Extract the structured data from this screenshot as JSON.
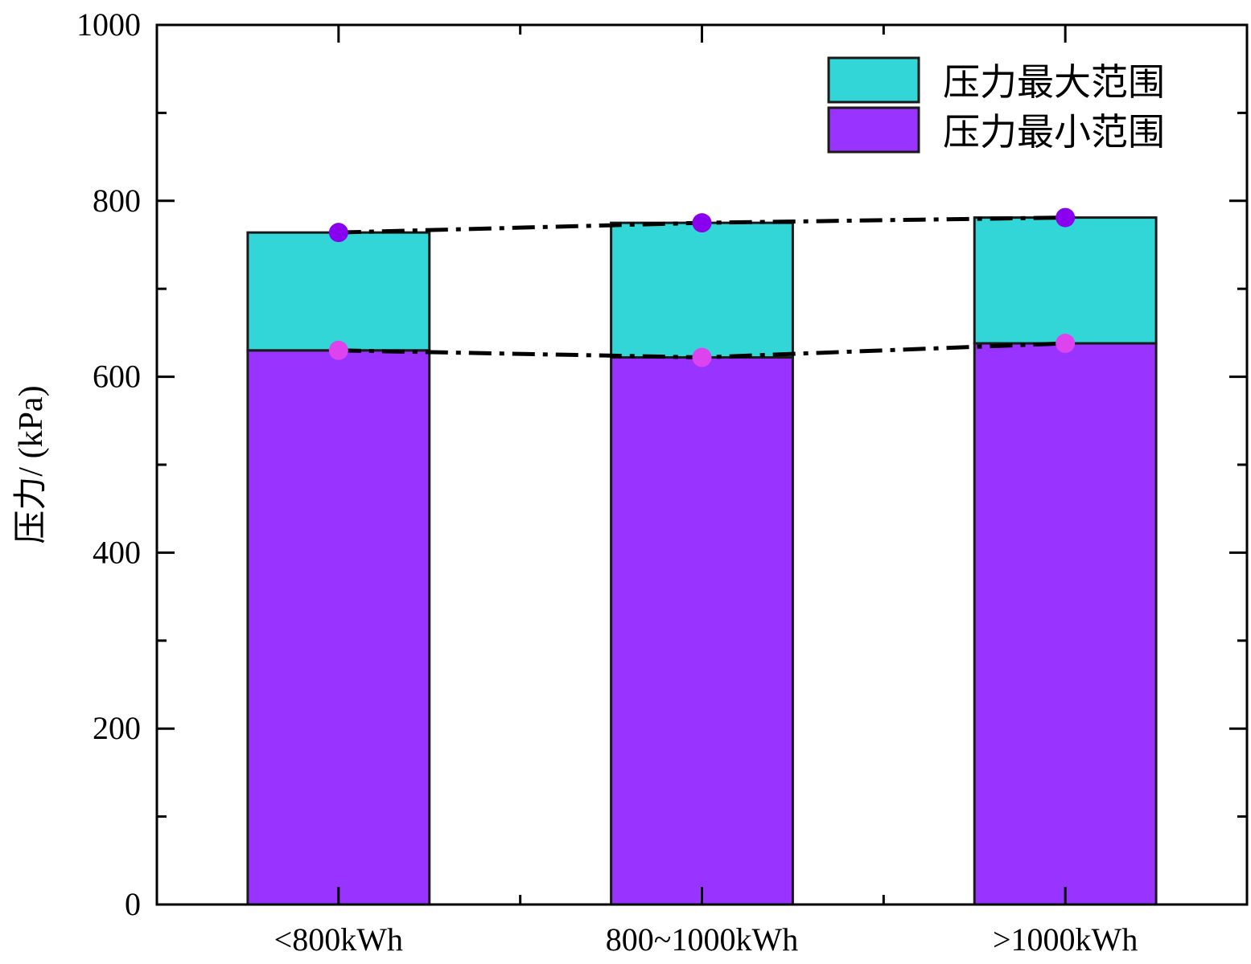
{
  "chart_data": {
    "type": "bar",
    "stacked": true,
    "categories": [
      "<800kWh",
      "800~1000kWh",
      ">1000kWh"
    ],
    "series": [
      {
        "name": "压力最小范围",
        "values": [
          630,
          622,
          638
        ],
        "color": "#9933ff"
      },
      {
        "name": "压力最大范围",
        "values": [
          134,
          153,
          143
        ],
        "color": "#33d6d6"
      }
    ],
    "max_points": [
      764,
      775,
      781
    ],
    "min_points": [
      630,
      622,
      638
    ],
    "max_point_color": "#8800ee",
    "min_point_color": "#dd44ee",
    "ylabel": "压力/ (kPa)",
    "ylim": [
      0,
      1000
    ],
    "yticks": [
      "0",
      "200",
      "400",
      "600",
      "800",
      "1000"
    ],
    "legend_position": "top-right",
    "grid": false
  }
}
